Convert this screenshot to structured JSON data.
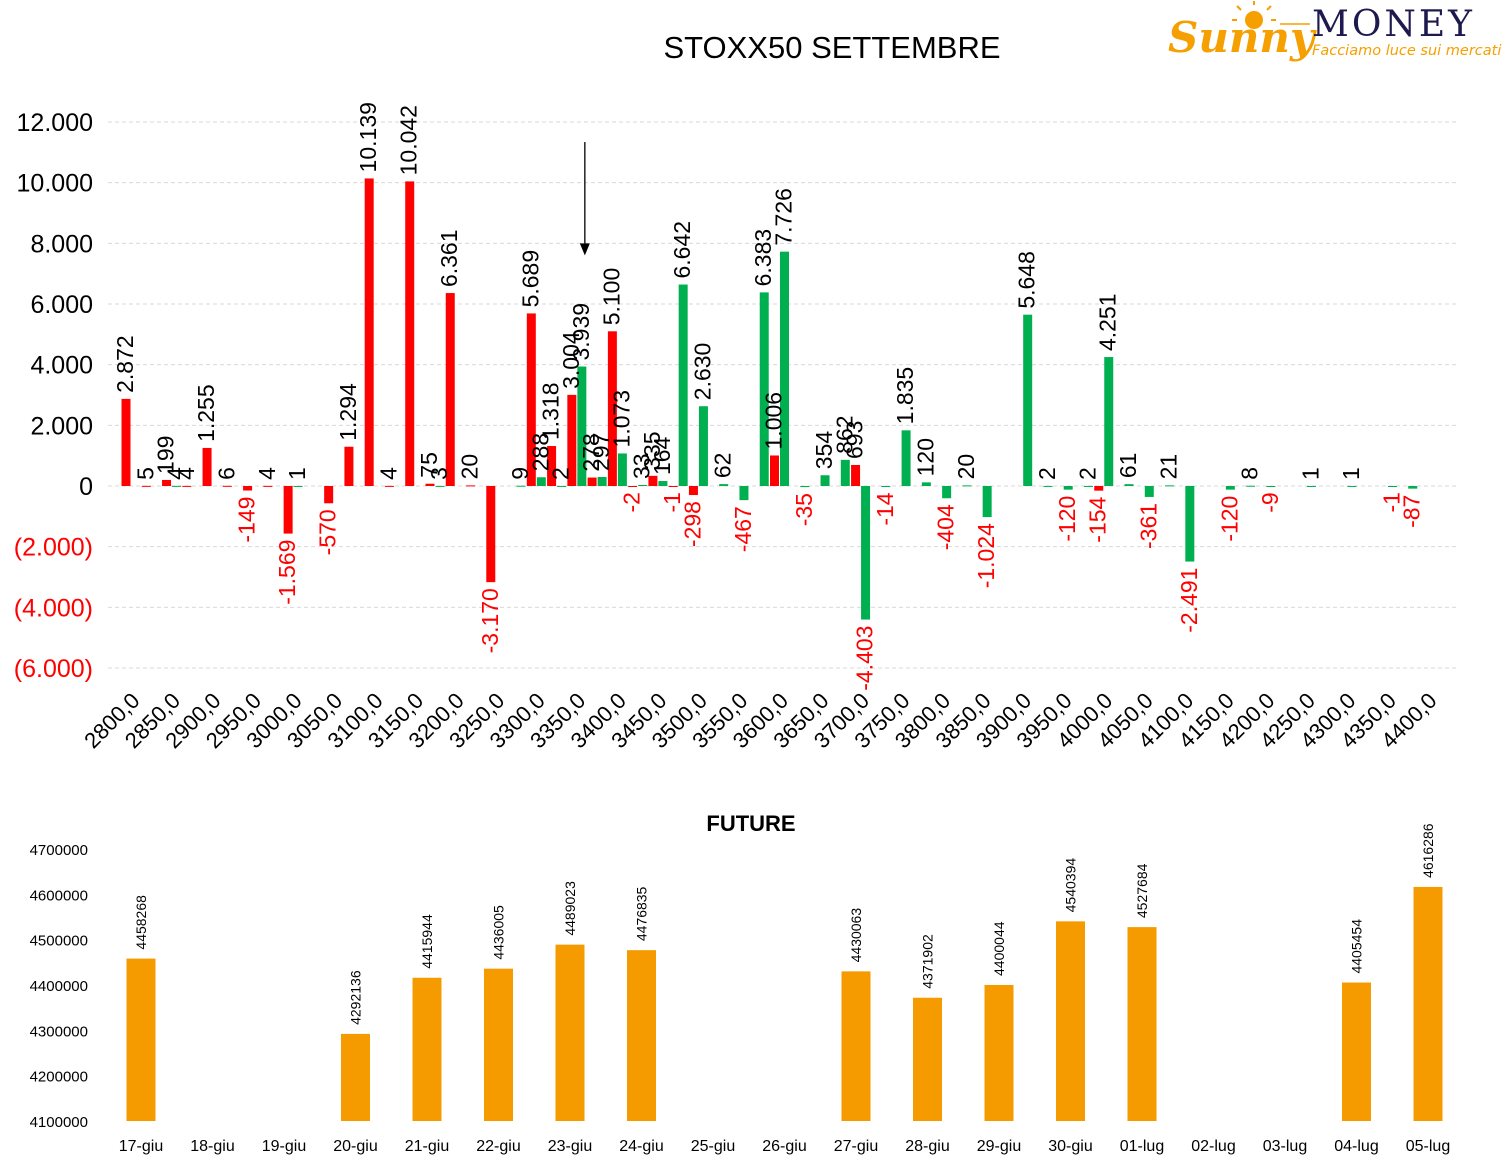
{
  "logo": {
    "sunny": "Sunny",
    "money": "MONEY",
    "tagline": "Facciamo luce sui mercati"
  },
  "colors": {
    "red": "#ff0000",
    "green": "#00b050",
    "orange": "#f59b00",
    "grid": "#d9d9d9",
    "text": "#000000",
    "logo_orange": "#f5a000",
    "logo_dark": "#1f1a4e"
  },
  "chart_data": [
    {
      "type": "bar",
      "title": "STOXX50 SETTEMBRE",
      "ylim": [
        -6000,
        12000
      ],
      "yticks": [
        12000,
        10000,
        8000,
        6000,
        4000,
        2000,
        0,
        -2000,
        -4000,
        -6000
      ],
      "ytick_labels": [
        "12.000",
        "10.000",
        "8.000",
        "6.000",
        "4.000",
        "2.000",
        "0",
        "(2.000)",
        "(4.000)",
        "(6.000)"
      ],
      "grid": true,
      "legend": "none",
      "strikes": [
        2800,
        2825,
        2850,
        2875,
        2900,
        2925,
        2950,
        2975,
        3000,
        3025,
        3050,
        3075,
        3100,
        3125,
        3150,
        3175,
        3200,
        3225,
        3250,
        3275,
        3300,
        3325,
        3350,
        3375,
        3400,
        3425,
        3450,
        3475,
        3500,
        3525,
        3550,
        3575,
        3600,
        3625,
        3650,
        3675,
        3700,
        3725,
        3750,
        3775,
        3800,
        3825,
        3850,
        3875,
        3900,
        3925,
        3950,
        3975,
        4000,
        4025,
        4050,
        4075,
        4100,
        4125,
        4150,
        4175,
        4200,
        4225,
        4250,
        4275,
        4300,
        4325,
        4350,
        4375,
        4400
      ],
      "x_tick_labels": [
        "2800,0",
        "2850,0",
        "2900,0",
        "2950,0",
        "3000,0",
        "3050,0",
        "3100,0",
        "3150,0",
        "3200,0",
        "3250,0",
        "3300,0",
        "3350,0",
        "3400,0",
        "3450,0",
        "3500,0",
        "3550,0",
        "3600,0",
        "3650,0",
        "3700,0",
        "3750,0",
        "3800,0",
        "3850,0",
        "3900,0",
        "3950,0",
        "4000,0",
        "4050,0",
        "4100,0",
        "4150,0",
        "4200,0",
        "4250,0",
        "4300,0",
        "4350,0",
        "4400,0"
      ],
      "series": [
        {
          "color": "red",
          "points": [
            {
              "x": 2800,
              "y": 2872,
              "label": "2.872"
            },
            {
              "x": 2825,
              "y": 5,
              "label": "5"
            },
            {
              "x": 2850,
              "y": 199,
              "label": "199"
            },
            {
              "x": 2875,
              "y": 4,
              "label": "4"
            },
            {
              "x": 2900,
              "y": 1255,
              "label": "1.255"
            },
            {
              "x": 2925,
              "y": 6,
              "label": "6"
            },
            {
              "x": 2950,
              "y": -149,
              "label": "-149"
            },
            {
              "x": 2975,
              "y": 4,
              "label": "4"
            },
            {
              "x": 3000,
              "y": -1569,
              "label": "-1.569"
            },
            {
              "x": 3050,
              "y": -570,
              "label": "-570"
            },
            {
              "x": 3075,
              "y": 1294,
              "label": "1.294"
            },
            {
              "x": 3100,
              "y": 10139,
              "label": "10.139"
            },
            {
              "x": 3125,
              "y": 4,
              "label": "4"
            },
            {
              "x": 3150,
              "y": 10042,
              "label": "10.042"
            },
            {
              "x": 3175,
              "y": 75,
              "label": "75"
            },
            {
              "x": 3200,
              "y": 6361,
              "label": "6.361"
            },
            {
              "x": 3225,
              "y": 20,
              "label": "20"
            },
            {
              "x": 3250,
              "y": -3170,
              "label": "-3.170"
            },
            {
              "x": 3300,
              "y": 5689,
              "label": "5.689"
            },
            {
              "x": 3325,
              "y": 1318,
              "label": "1.318"
            },
            {
              "x": 3350,
              "y": 3004,
              "label": "3.004"
            },
            {
              "x": 3375,
              "y": 278,
              "label": "278"
            },
            {
              "x": 3400,
              "y": 5100,
              "label": "5.100"
            },
            {
              "x": 3425,
              "y": -2,
              "label": "-2"
            },
            {
              "x": 3450,
              "y": 335,
              "label": "335"
            },
            {
              "x": 3475,
              "y": -1,
              "label": "-1"
            },
            {
              "x": 3500,
              "y": -298,
              "label": "-298"
            },
            {
              "x": 3600,
              "y": 1006,
              "label": "1.006"
            },
            {
              "x": 3700,
              "y": 693,
              "label": "693"
            },
            {
              "x": 4000,
              "y": -154,
              "label": "-154"
            }
          ]
        },
        {
          "color": "green",
          "points": [
            {
              "x": 2850,
              "y": 4,
              "label": "4"
            },
            {
              "x": 3000,
              "y": 1,
              "label": "1"
            },
            {
              "x": 3175,
              "y": 3,
              "label": "3"
            },
            {
              "x": 3275,
              "y": 9,
              "label": "9"
            },
            {
              "x": 3300,
              "y": 288,
              "label": "288"
            },
            {
              "x": 3325,
              "y": 2,
              "label": "2"
            },
            {
              "x": 3350,
              "y": 3939,
              "label": "3.939"
            },
            {
              "x": 3375,
              "y": 297,
              "label": "297"
            },
            {
              "x": 3400,
              "y": 1073,
              "label": "1.073"
            },
            {
              "x": 3425,
              "y": 33,
              "label": "33"
            },
            {
              "x": 3450,
              "y": 164,
              "label": "164"
            },
            {
              "x": 3475,
              "y": 6642,
              "label": "6.642"
            },
            {
              "x": 3500,
              "y": 2630,
              "label": "2.630"
            },
            {
              "x": 3525,
              "y": 62,
              "label": "62"
            },
            {
              "x": 3550,
              "y": -467,
              "label": "-467"
            },
            {
              "x": 3575,
              "y": 6383,
              "label": "6.383"
            },
            {
              "x": 3600,
              "y": 7726,
              "label": "7.726"
            },
            {
              "x": 3625,
              "y": -35,
              "label": "-35"
            },
            {
              "x": 3650,
              "y": 354,
              "label": "354"
            },
            {
              "x": 3675,
              "y": 862,
              "label": "862"
            },
            {
              "x": 3700,
              "y": -4403,
              "label": "-4.403"
            },
            {
              "x": 3725,
              "y": -14,
              "label": "-14"
            },
            {
              "x": 3750,
              "y": 1835,
              "label": "1.835"
            },
            {
              "x": 3775,
              "y": 120,
              "label": "120"
            },
            {
              "x": 3800,
              "y": -404,
              "label": "-404"
            },
            {
              "x": 3825,
              "y": 20,
              "label": "20"
            },
            {
              "x": 3850,
              "y": -1024,
              "label": "-1.024"
            },
            {
              "x": 3900,
              "y": 5648,
              "label": "5.648"
            },
            {
              "x": 3925,
              "y": 2,
              "label": "2"
            },
            {
              "x": 3950,
              "y": -120,
              "label": "-120"
            },
            {
              "x": 3975,
              "y": 2,
              "label": "2"
            },
            {
              "x": 4000,
              "y": 4251,
              "label": "4.251"
            },
            {
              "x": 4025,
              "y": 61,
              "label": "61"
            },
            {
              "x": 4050,
              "y": -361,
              "label": "-361"
            },
            {
              "x": 4075,
              "y": 21,
              "label": "21"
            },
            {
              "x": 4100,
              "y": -2491,
              "label": "-2.491"
            },
            {
              "x": 4150,
              "y": -120,
              "label": "-120"
            },
            {
              "x": 4175,
              "y": 8,
              "label": "8"
            },
            {
              "x": 4200,
              "y": -9,
              "label": "-9"
            },
            {
              "x": 4250,
              "y": 1,
              "label": "1"
            },
            {
              "x": 4300,
              "y": 1,
              "label": "1"
            },
            {
              "x": 4350,
              "y": -1,
              "label": "-1"
            },
            {
              "x": 4375,
              "y": -87,
              "label": "-87"
            }
          ]
        }
      ],
      "annotation": {
        "type": "arrow",
        "points_to_x": 3350,
        "from_y": 11800,
        "to_y": 7800
      }
    },
    {
      "type": "bar",
      "title": "FUTURE",
      "ylim": [
        4100000,
        4700000
      ],
      "yticks": [
        4700000,
        4600000,
        4500000,
        4400000,
        4300000,
        4200000,
        4100000
      ],
      "ytick_labels": [
        "4700000",
        "4600000",
        "4500000",
        "4400000",
        "4300000",
        "4200000",
        "4100000"
      ],
      "categories": [
        "17-giu",
        "18-giu",
        "19-giu",
        "20-giu",
        "21-giu",
        "22-giu",
        "23-giu",
        "24-giu",
        "25-giu",
        "26-giu",
        "27-giu",
        "28-giu",
        "29-giu",
        "30-giu",
        "01-lug",
        "02-lug",
        "03-lug",
        "04-lug",
        "05-lug"
      ],
      "values": [
        4458268,
        null,
        null,
        4292136,
        4415944,
        4436005,
        4489023,
        4476835,
        null,
        null,
        4430063,
        4371902,
        4400044,
        4540394,
        4527684,
        null,
        null,
        4405454,
        4616286
      ],
      "value_labels": [
        "4458268",
        "",
        "",
        "4292136",
        "4415944",
        "4436005",
        "4489023",
        "4476835",
        "",
        "",
        "4430063",
        "4371902",
        "4400044",
        "4540394",
        "4527684",
        "",
        "",
        "4405454",
        "4616286"
      ],
      "grid": false,
      "legend": "none",
      "color": "orange"
    }
  ]
}
